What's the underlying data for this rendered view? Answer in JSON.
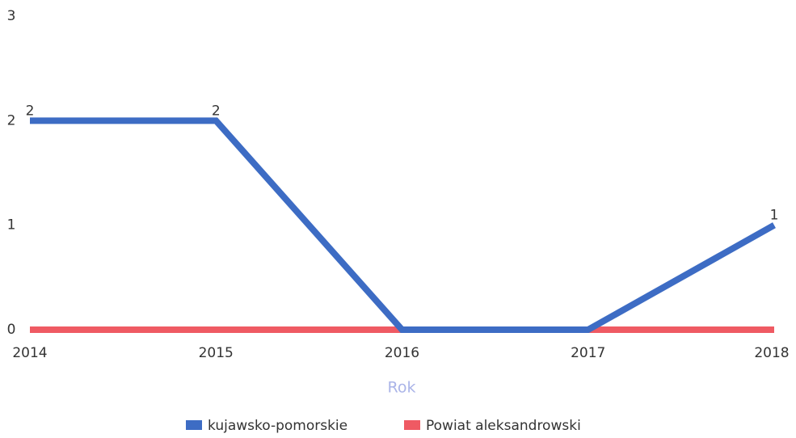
{
  "chart_data": {
    "type": "line",
    "x": [
      2014,
      2015,
      2016,
      2017,
      2018
    ],
    "xlim": [
      2014,
      2018
    ],
    "xticks": [
      2014,
      2015,
      2016,
      2017,
      2018
    ],
    "ylim": [
      0,
      3
    ],
    "yticks": [
      0,
      1,
      2,
      3
    ],
    "x_label": "Rok",
    "grid": false,
    "series": [
      {
        "name": "kujawsko-pomorskie",
        "color": "#3d6cc4",
        "values": [
          2,
          2,
          0,
          0,
          1
        ],
        "value_labels": [
          "2",
          "2",
          null,
          null,
          "1"
        ]
      },
      {
        "name": "Powiat aleksandrowski",
        "color": "#ef5a63",
        "values": [
          0,
          0,
          0,
          0,
          0
        ]
      }
    ]
  }
}
